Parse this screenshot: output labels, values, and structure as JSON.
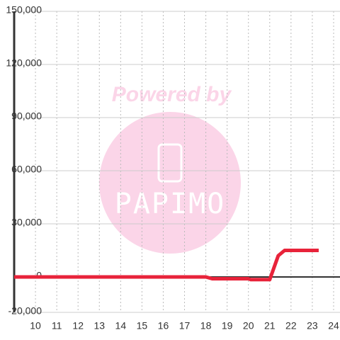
{
  "chart_data": {
    "type": "line",
    "x": [
      9,
      18,
      18.3,
      20,
      20.1,
      21,
      21.4,
      21.7,
      23.3
    ],
    "series": [
      {
        "color": "#e8233a",
        "values": [
          0,
          0,
          -1000,
          -1000,
          -1500,
          -1500,
          12000,
          15000,
          15000
        ]
      }
    ],
    "xlim": [
      9,
      24.3
    ],
    "xticks": [
      10,
      11,
      12,
      13,
      14,
      15,
      16,
      17,
      18,
      19,
      20,
      21,
      22,
      23,
      24
    ],
    "ylim": [
      -20000,
      150000
    ],
    "yticks": [
      {
        "value": -20000,
        "label": "-20,000"
      },
      0,
      {
        "value": 30000,
        "label": "30,000"
      },
      {
        "value": 60000,
        "label": "60,000"
      },
      {
        "value": 90000,
        "label": "90,000"
      },
      {
        "value": 120000,
        "label": "120,000"
      },
      {
        "value": 150000,
        "label": "150,000"
      }
    ],
    "grid": true
  },
  "watermark": {
    "top": "Powered by",
    "brand": "PAPIMO"
  }
}
